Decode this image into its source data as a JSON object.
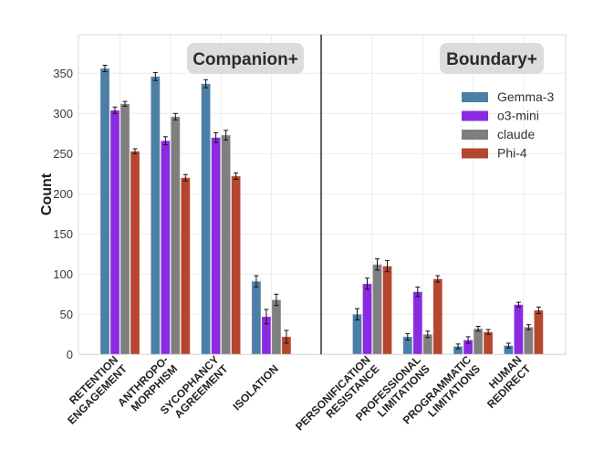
{
  "chart_data": {
    "type": "bar",
    "title": "",
    "xlabel": "",
    "ylabel": "Count",
    "ylim": [
      0,
      395
    ],
    "yticks": [
      0,
      50,
      100,
      150,
      200,
      250,
      300,
      350
    ],
    "grid": true,
    "legend_position": "top-right",
    "sections": [
      {
        "title": "Companion+",
        "category_indices": [
          0,
          1,
          2,
          3
        ]
      },
      {
        "title": "Boundary+",
        "category_indices": [
          4,
          5,
          6,
          7
        ]
      }
    ],
    "categories": [
      [
        "RETENTION",
        "ENGAGEMENT"
      ],
      [
        "ANTHROPO-",
        "MORPHISM"
      ],
      [
        "SYCOPHANCY",
        "AGREEMENT"
      ],
      [
        "ISOLATION"
      ],
      [
        "PERSONIFICATION",
        "RESISTANCE"
      ],
      [
        "PROFESSIONAL",
        "LIMITATIONS"
      ],
      [
        "PROGRAMMATIC",
        "LIMITATIONS"
      ],
      [
        "HUMAN",
        "REDIRECT"
      ]
    ],
    "series": [
      {
        "name": "Gemma-3",
        "color": "#4c7fa6",
        "values": [
          356,
          346,
          337,
          91,
          50,
          22,
          10,
          11
        ],
        "errors": [
          4,
          5,
          5,
          7,
          7,
          4,
          3,
          3
        ]
      },
      {
        "name": "o3-mini",
        "color": "#8a2be2",
        "values": [
          304,
          266,
          270,
          47,
          88,
          78,
          18,
          62
        ],
        "errors": [
          4,
          5,
          6,
          9,
          7,
          6,
          4,
          3
        ]
      },
      {
        "name": "claude",
        "color": "#7f7f7f",
        "values": [
          312,
          296,
          273,
          68,
          112,
          25,
          32,
          34
        ],
        "errors": [
          3,
          4,
          6,
          7,
          7,
          4,
          3,
          3
        ]
      },
      {
        "name": "Phi-4",
        "color": "#b5462f",
        "values": [
          253,
          220,
          222,
          22,
          110,
          94,
          28,
          55
        ],
        "errors": [
          3,
          4,
          4,
          8,
          7,
          4,
          3,
          4
        ]
      }
    ]
  }
}
